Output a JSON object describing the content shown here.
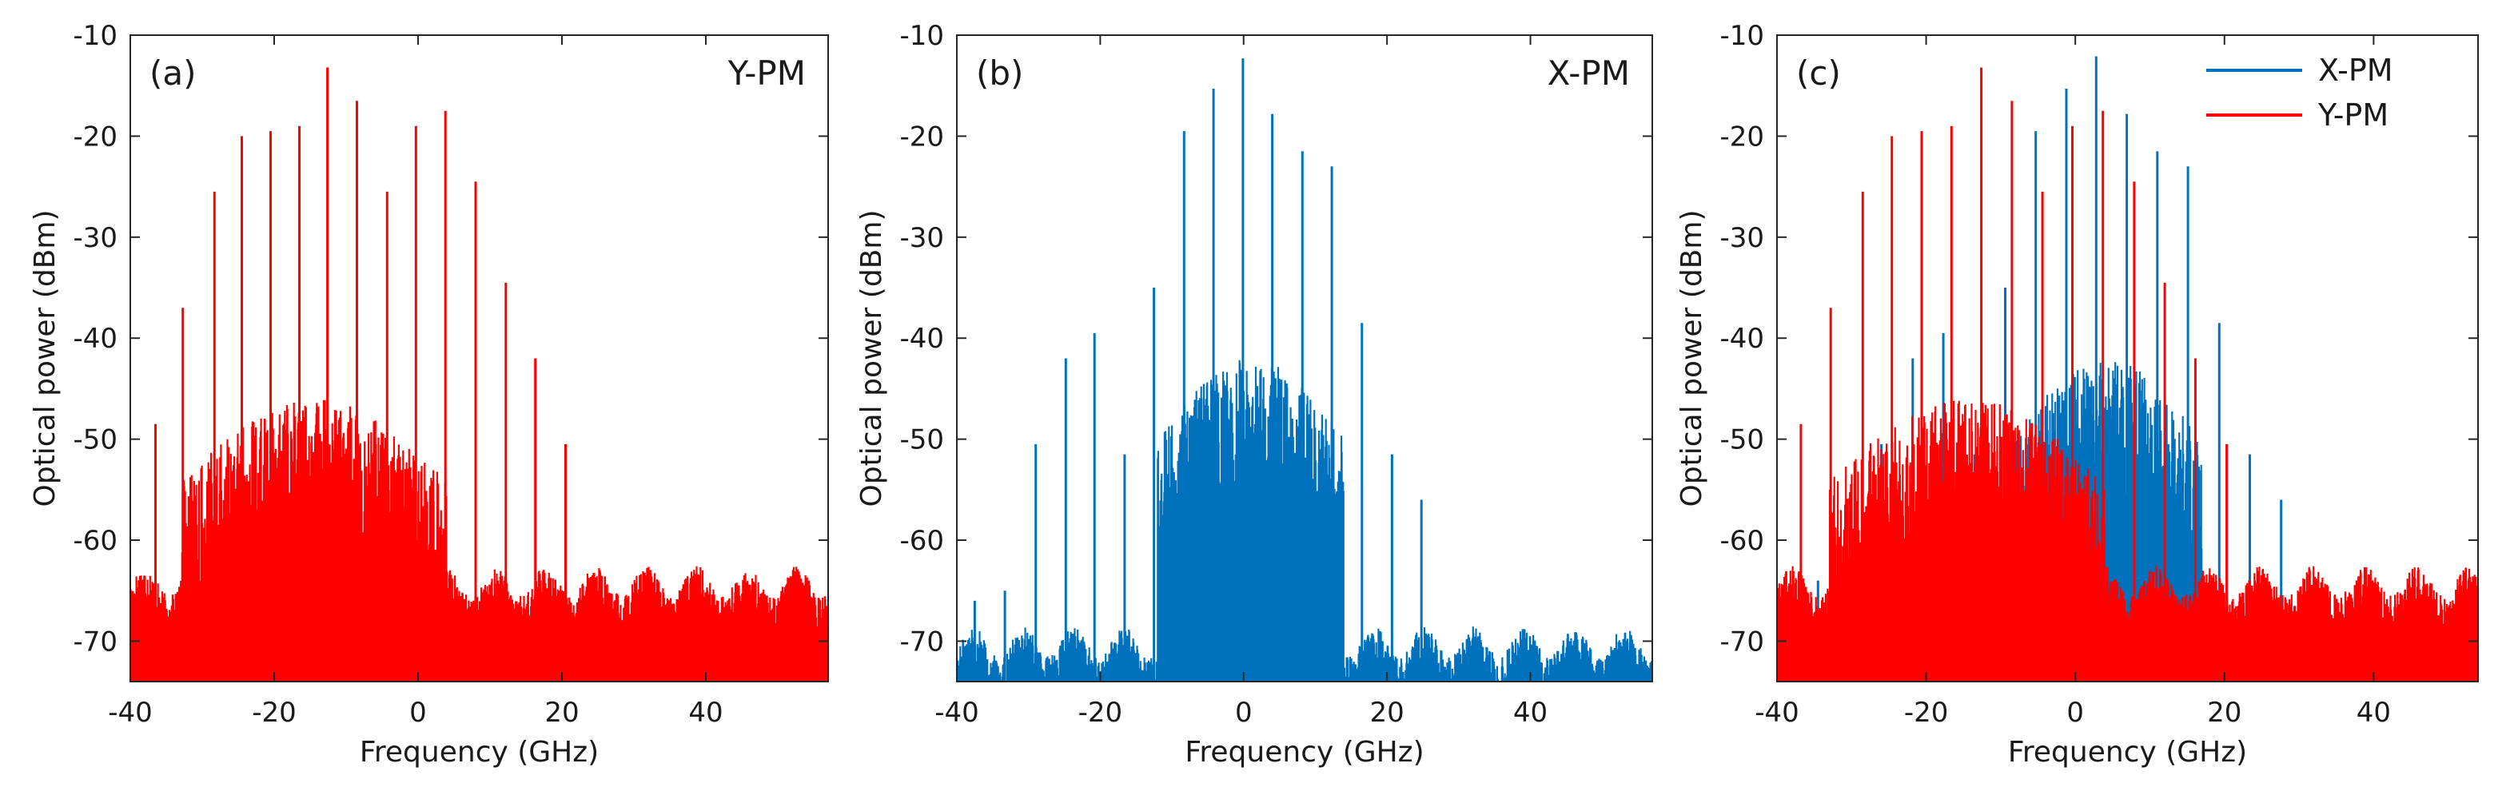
{
  "chart_data": [
    {
      "type": "line",
      "panel_label": "(a)",
      "title": "Y-PM",
      "xlabel": "Frequency (GHz)",
      "ylabel": "Optical power (dBm)",
      "xlim": [
        -40,
        57
      ],
      "ylim": [
        -74,
        -10
      ],
      "xticks": [
        -40,
        -20,
        0,
        20,
        40
      ],
      "yticks": [
        -10,
        -20,
        -30,
        -40,
        -50,
        -60,
        -70
      ],
      "grid": false,
      "series": [
        {
          "name": "Y-PM",
          "color": "#ff0000",
          "lines": [
            {
              "x": -36.5,
              "y": -48.5
            },
            {
              "x": -32.7,
              "y": -37
            },
            {
              "x": -28.3,
              "y": -25.5
            },
            {
              "x": -24.5,
              "y": -20
            },
            {
              "x": -20.5,
              "y": -19.5
            },
            {
              "x": -16.5,
              "y": -19
            },
            {
              "x": -12.6,
              "y": -13.2
            },
            {
              "x": -8.5,
              "y": -16.5
            },
            {
              "x": -4.3,
              "y": -25.5
            },
            {
              "x": -0.3,
              "y": -19
            },
            {
              "x": 3.8,
              "y": -17.5
            },
            {
              "x": 8.0,
              "y": -24.5
            },
            {
              "x": 12.2,
              "y": -34.5
            },
            {
              "x": 16.3,
              "y": -42
            },
            {
              "x": 20.5,
              "y": -50.5
            }
          ],
          "noise_floor_dBm": -66,
          "cluster_range_GHz": [
            -33,
            4
          ],
          "cluster_level_dBm": -50
        }
      ]
    },
    {
      "type": "line",
      "panel_label": "(b)",
      "title": "X-PM",
      "xlabel": "Frequency (GHz)",
      "ylabel": "Optical power (dBm)",
      "xlim": [
        -40,
        57
      ],
      "ylim": [
        -74,
        -10
      ],
      "xticks": [
        -40,
        -20,
        0,
        20,
        40
      ],
      "yticks": [
        -10,
        -20,
        -30,
        -40,
        -50,
        -60,
        -70
      ],
      "grid": false,
      "series": [
        {
          "name": "X-PM",
          "color": "#0072bd",
          "lines": [
            {
              "x": -37.5,
              "y": -66
            },
            {
              "x": -33.3,
              "y": -65
            },
            {
              "x": -29.0,
              "y": -50.5
            },
            {
              "x": -24.8,
              "y": -42
            },
            {
              "x": -20.8,
              "y": -39.5
            },
            {
              "x": -16.6,
              "y": -51.5
            },
            {
              "x": -12.5,
              "y": -35
            },
            {
              "x": -8.3,
              "y": -19.5
            },
            {
              "x": -4.2,
              "y": -15.3
            },
            {
              "x": -0.1,
              "y": -12.3
            },
            {
              "x": 4.0,
              "y": -17.8
            },
            {
              "x": 8.2,
              "y": -21.5
            },
            {
              "x": 12.3,
              "y": -23
            },
            {
              "x": 16.5,
              "y": -38.5
            },
            {
              "x": 20.7,
              "y": -51.5
            },
            {
              "x": 24.8,
              "y": -56
            }
          ],
          "noise_floor_dBm": -72,
          "cluster_range_GHz": [
            -12,
            14
          ],
          "cluster_level_dBm": -46
        }
      ]
    },
    {
      "type": "line",
      "panel_label": "(c)",
      "title": "",
      "xlabel": "Frequency (GHz)",
      "ylabel": "Optical power (dBm)",
      "xlim": [
        -40,
        54
      ],
      "ylim": [
        -74,
        -10
      ],
      "xticks": [
        -40,
        -20,
        0,
        20,
        40
      ],
      "yticks": [
        -10,
        -20,
        -30,
        -40,
        -50,
        -60,
        -70
      ],
      "grid": false,
      "legend": {
        "position": "top-right",
        "entries": [
          "X-PM",
          "Y-PM"
        ]
      },
      "series": [
        {
          "name": "X-PM",
          "color": "#0072bd",
          "lines": [
            {
              "x": -34.5,
              "y": -64
            },
            {
              "x": -30.2,
              "y": -64
            },
            {
              "x": -26.0,
              "y": -50.5
            },
            {
              "x": -21.8,
              "y": -42
            },
            {
              "x": -17.7,
              "y": -39.5
            },
            {
              "x": -13.5,
              "y": -51.5
            },
            {
              "x": -9.4,
              "y": -35
            },
            {
              "x": -5.3,
              "y": -19.5
            },
            {
              "x": -1.2,
              "y": -15.3
            },
            {
              "x": 2.8,
              "y": -12.1
            },
            {
              "x": 6.9,
              "y": -17.8
            },
            {
              "x": 11.0,
              "y": -21.5
            },
            {
              "x": 15.1,
              "y": -23
            },
            {
              "x": 19.3,
              "y": -38.5
            },
            {
              "x": 23.4,
              "y": -51.5
            },
            {
              "x": 27.6,
              "y": -56
            }
          ],
          "noise_floor_dBm": -72,
          "cluster_range_GHz": [
            -9,
            17
          ],
          "cluster_level_dBm": -46
        },
        {
          "name": "Y-PM",
          "color": "#ff0000",
          "lines": [
            {
              "x": -36.8,
              "y": -48.5
            },
            {
              "x": -32.8,
              "y": -37
            },
            {
              "x": -28.5,
              "y": -25.5
            },
            {
              "x": -24.6,
              "y": -20
            },
            {
              "x": -20.6,
              "y": -19.5
            },
            {
              "x": -16.6,
              "y": -19
            },
            {
              "x": -12.6,
              "y": -13.2
            },
            {
              "x": -8.5,
              "y": -16.5
            },
            {
              "x": -4.4,
              "y": -25.5
            },
            {
              "x": -0.4,
              "y": -19
            },
            {
              "x": 3.7,
              "y": -17.5
            },
            {
              "x": 7.9,
              "y": -24.5
            },
            {
              "x": 12.0,
              "y": -34.5
            },
            {
              "x": 16.1,
              "y": -42
            },
            {
              "x": 20.3,
              "y": -50.5
            }
          ],
          "noise_floor_dBm": -66,
          "cluster_range_GHz": [
            -33,
            4
          ],
          "cluster_level_dBm": -50
        }
      ]
    }
  ]
}
